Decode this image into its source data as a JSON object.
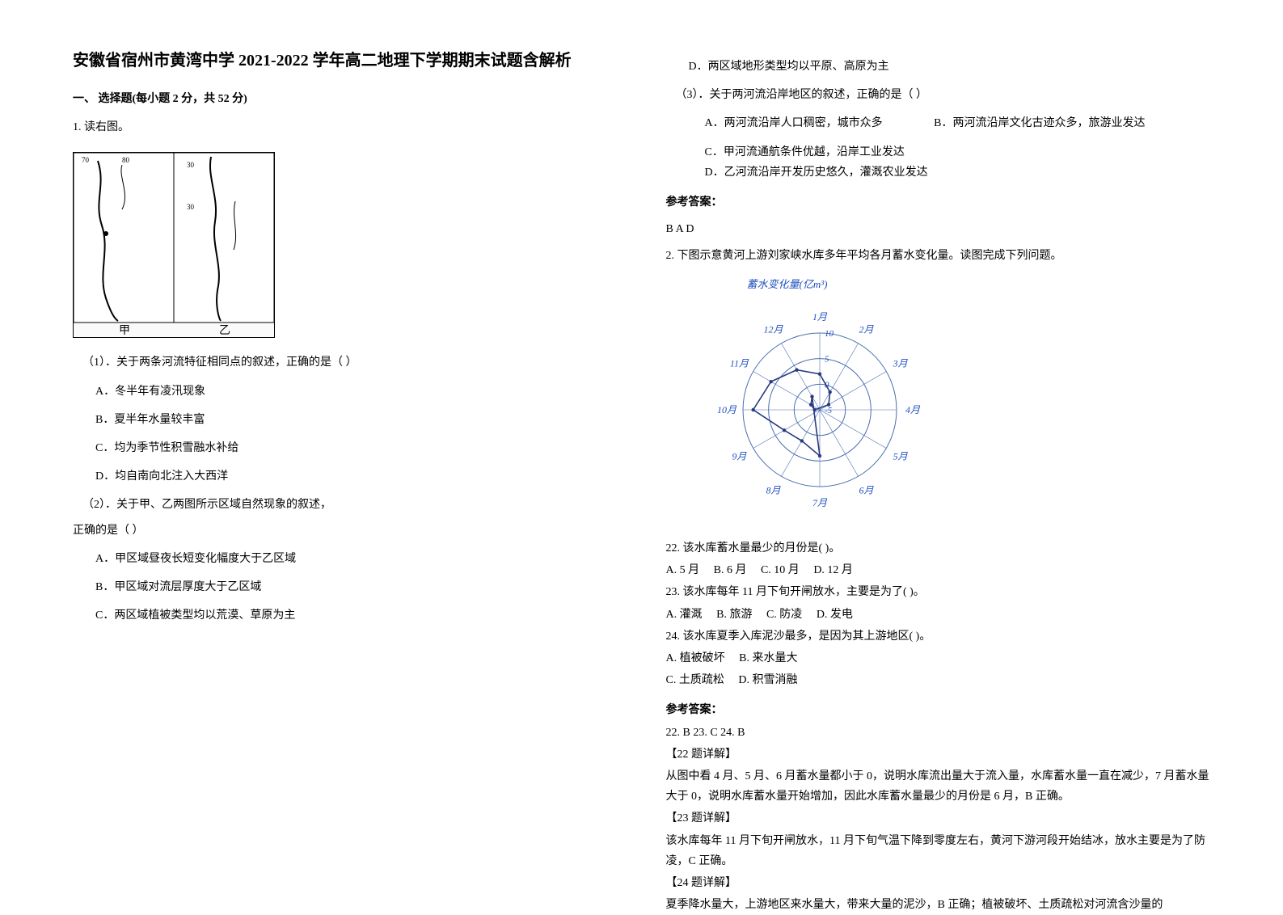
{
  "title": "安徽省宿州市黄湾中学 2021-2022 学年高二地理下学期期末试题含解析",
  "section1": "一、 选择题(每小题 2 分，共 52 分)",
  "q1_stem": "1. 读右图。",
  "map_labels": {
    "left": "甲",
    "right": "乙"
  },
  "q1_sub1": "（1）．关于两条河流特征相同点的叙述，正确的是（  ）",
  "q1_sub1_opts": {
    "A": "A．冬半年有凌汛现象",
    "B": "B．夏半年水量较丰富",
    "C": "C．均为季节性积雪融水补给",
    "D": "D．均自南向北注入大西洋"
  },
  "q1_sub2": "（2）．关于甲、乙两图所示区域自然现象的叙述，",
  "q1_sub2_tail": "正确的是（  ）",
  "q1_sub2_opts": {
    "A": "A．甲区域昼夜长短变化幅度大于乙区域",
    "B": "B．甲区域对流层厚度大于乙区域",
    "C": "C．两区域植被类型均以荒漠、草原为主",
    "D": "D．两区域地形类型均以平原、高原为主"
  },
  "q1_sub3": "（3）．关于两河流沿岸地区的叙述，正确的是（  ）",
  "q1_sub3_opts": {
    "A": "A．两河流沿岸人口稠密，城市众多",
    "B": "B．两河流沿岸文化古迹众多，旅游业发达",
    "C": "C．甲河流通航条件优越，沿岸工业发达",
    "D": "D．乙河流沿岸开发历史悠久，灌溉农业发达"
  },
  "q1_answer_head": "参考答案：",
  "q1_answer": "B  A  D",
  "q2_stem": "2. 下图示意黄河上游刘家峡水库多年平均各月蓄水变化量。读图完成下列问题。",
  "radar": {
    "axis_title": "蓄水变化量(亿m³)",
    "months": [
      "1月",
      "2月",
      "3月",
      "4月",
      "5月",
      "6月",
      "7月",
      "8月",
      "9月",
      "10月",
      "11月",
      "12月"
    ],
    "rings": [
      -5,
      0,
      5,
      10
    ],
    "values": [
      2,
      -1,
      -3,
      -6,
      -7,
      -8,
      4,
      2,
      3,
      8,
      6,
      4
    ],
    "ring_color": "#4a6fb0",
    "line_color": "#2a3a80",
    "text_color": "#2050c0",
    "bg": "#ffffff"
  },
  "q22": "22. 该水库蓄水量最少的月份是(   )。",
  "q22_opts": {
    "A": "A. 5 月",
    "B": "B. 6 月",
    "C": "C. 10 月",
    "D": "D. 12 月"
  },
  "q23": "23. 该水库每年 11 月下旬开闸放水，主要是为了(   )。",
  "q23_opts": {
    "A": "A. 灌溉",
    "B": "B. 旅游",
    "C": "C. 防凌",
    "D": "D. 发电"
  },
  "q24": "24. 该水库夏季入库泥沙最多，是因为其上游地区(   )。",
  "q24_opts": {
    "A": "A. 植被破坏",
    "B": "B. 来水量大",
    "C": "C. 土质疏松",
    "D": "D. 积雪消融"
  },
  "q2_answer_head": "参考答案：",
  "q2_answer": "22. B   23. C   24. B",
  "exp22_head": "【22 题详解】",
  "exp22": "从图中看 4 月、5 月、6 月蓄水量都小于 0，说明水库流出量大于流入量，水库蓄水量一直在减少，7 月蓄水量大于 0，说明水库蓄水量开始增加，因此水库蓄水量最少的月份是 6 月，B 正确。",
  "exp23_head": "【23 题详解】",
  "exp23": "该水库每年 11 月下旬开闸放水，11 月下旬气温下降到零度左右，黄河下游河段开始结冰，放水主要是为了防凌，C 正确。",
  "exp24_head": "【24 题详解】",
  "exp24": "夏季降水量大，上游地区来水量大，带来大量的泥沙，B 正确；植被破坏、土质疏松对河流含沙量的"
}
